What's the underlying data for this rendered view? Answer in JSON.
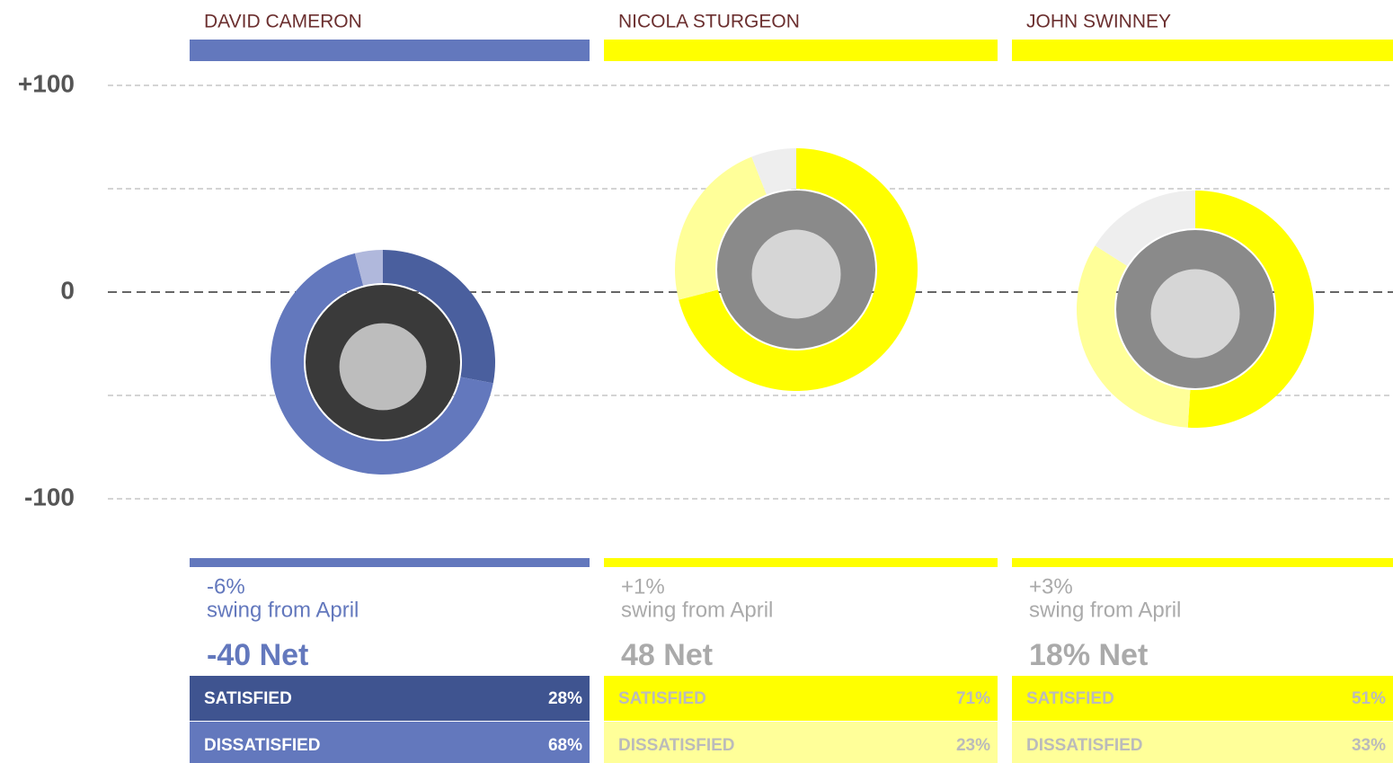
{
  "axis": {
    "ticks": [
      "+100",
      "0",
      "-100"
    ]
  },
  "labels": {
    "satisfied": "SATISFIED",
    "dissatisfied": "DISSATISFIED",
    "swing_suffix": "swing from April"
  },
  "people": [
    {
      "name": "DAVID CAMERON",
      "swing": "-6%",
      "net": "-40 Net",
      "satisfied": 28,
      "satisfied_label": "28%",
      "dissatisfied": 68,
      "dissatisfied_label": "68%",
      "color": "#6378bd",
      "dark_color": "#3f5490",
      "rest_color": "#b0b8dc"
    },
    {
      "name": "NICOLA STURGEON",
      "swing": "+1%",
      "net": "48 Net",
      "satisfied": 71,
      "satisfied_label": "71%",
      "dissatisfied": 23,
      "dissatisfied_label": "23%",
      "color": "#ffff00",
      "dark_color": "#ffff00",
      "rest_color": "#eeeeee"
    },
    {
      "name": "JOHN SWINNEY",
      "swing": "+3%",
      "net": "18% Net",
      "satisfied": 51,
      "satisfied_label": "51%",
      "dissatisfied": 33,
      "dissatisfied_label": "33%",
      "color": "#ffff00",
      "dark_color": "#ffff00",
      "rest_color": "#eeeeee"
    }
  ]
}
